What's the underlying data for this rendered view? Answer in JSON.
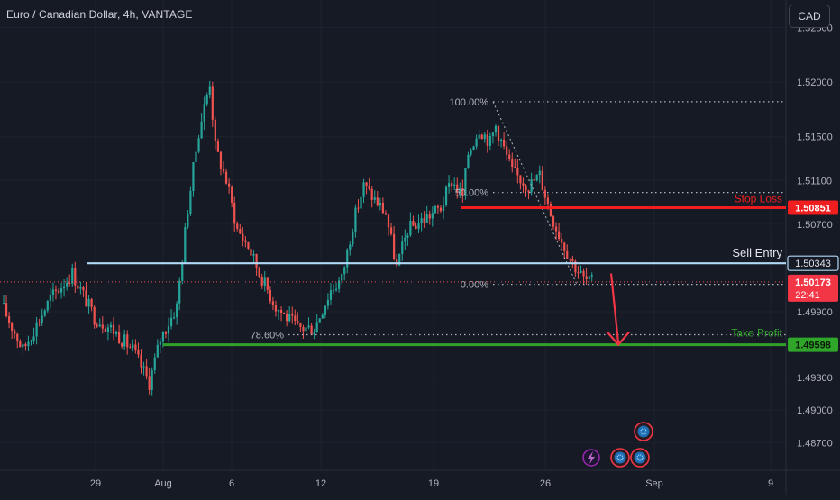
{
  "header": {
    "title": "Euro / Canadian Dollar, 4h, VANTAGE",
    "currency_button": "CAD"
  },
  "colors": {
    "background": "#161a25",
    "grid": "#1e222d",
    "up": "#26a69a",
    "down": "#ef5350",
    "sell_entry": "#b2d8f7",
    "stop_loss": "#f01e1e",
    "take_profit": "#31a12a",
    "fib": "#b2b5be",
    "axis_text": "#b2b5be"
  },
  "chart_data": {
    "type": "candlestick",
    "symbol": "EURCAD",
    "timeframe": "4h",
    "y_axis": {
      "ticks": [
        "1.52500",
        "1.52000",
        "1.51500",
        "1.51100",
        "1.50700",
        "1.49900",
        "1.49300",
        "1.49000",
        "1.48700"
      ],
      "ylim": [
        1.4845,
        1.5275
      ]
    },
    "x_axis": {
      "ticks": [
        "29",
        "Aug",
        "6",
        "12",
        "19",
        "26",
        "Sep",
        "9"
      ]
    },
    "levels": [
      {
        "id": "stop_loss",
        "label": "Stop Loss",
        "price": 1.50851,
        "price_label": "1.50851"
      },
      {
        "id": "sell_entry",
        "label": "Sell Entry",
        "price": 1.50343,
        "price_label": "1.50343"
      },
      {
        "id": "take_profit",
        "label": "Take Profit",
        "price": 1.49598,
        "price_label": "1.49598"
      }
    ],
    "current_price": {
      "price": 1.50173,
      "label": "1.50173",
      "countdown": "22:41"
    },
    "fibonacci": [
      {
        "label": "100.00%",
        "price": 1.5182
      },
      {
        "label": "50.00%",
        "price": 1.5099
      },
      {
        "label": "0.00%",
        "price": 1.5015
      },
      {
        "label": "78.60%",
        "price": 1.4969
      }
    ],
    "price_anchors": [
      {
        "t": 0,
        "p": 1.4998
      },
      {
        "t": 8,
        "p": 1.4955
      },
      {
        "t": 18,
        "p": 1.5002
      },
      {
        "t": 26,
        "p": 1.5025
      },
      {
        "t": 34,
        "p": 1.4985
      },
      {
        "t": 40,
        "p": 1.4975
      },
      {
        "t": 48,
        "p": 1.4955
      },
      {
        "t": 54,
        "p": 1.4925
      },
      {
        "t": 58,
        "p": 1.4965
      },
      {
        "t": 64,
        "p": 1.4995
      },
      {
        "t": 68,
        "p": 1.5085
      },
      {
        "t": 72,
        "p": 1.5155
      },
      {
        "t": 76,
        "p": 1.52
      },
      {
        "t": 78,
        "p": 1.514
      },
      {
        "t": 82,
        "p": 1.511
      },
      {
        "t": 86,
        "p": 1.5065
      },
      {
        "t": 90,
        "p": 1.505
      },
      {
        "t": 94,
        "p": 1.5025
      },
      {
        "t": 100,
        "p": 1.4995
      },
      {
        "t": 108,
        "p": 1.4975
      },
      {
        "t": 114,
        "p": 1.4975
      },
      {
        "t": 120,
        "p": 1.501
      },
      {
        "t": 124,
        "p": 1.502
      },
      {
        "t": 128,
        "p": 1.507
      },
      {
        "t": 132,
        "p": 1.5105
      },
      {
        "t": 140,
        "p": 1.508
      },
      {
        "t": 144,
        "p": 1.503
      },
      {
        "t": 148,
        "p": 1.5065
      },
      {
        "t": 154,
        "p": 1.5075
      },
      {
        "t": 160,
        "p": 1.5085
      },
      {
        "t": 164,
        "p": 1.511
      },
      {
        "t": 168,
        "p": 1.5095
      },
      {
        "t": 170,
        "p": 1.5135
      },
      {
        "t": 174,
        "p": 1.5158
      },
      {
        "t": 178,
        "p": 1.5145
      },
      {
        "t": 180,
        "p": 1.516
      },
      {
        "t": 186,
        "p": 1.5118
      },
      {
        "t": 192,
        "p": 1.5105
      },
      {
        "t": 196,
        "p": 1.5115
      },
      {
        "t": 200,
        "p": 1.508
      },
      {
        "t": 204,
        "p": 1.5055
      },
      {
        "t": 208,
        "p": 1.5035
      },
      {
        "t": 212,
        "p": 1.502
      },
      {
        "t": 214,
        "p": 1.5017
      }
    ],
    "trade_arrow": {
      "from_price": 1.5025,
      "to_price": 1.49598
    }
  }
}
